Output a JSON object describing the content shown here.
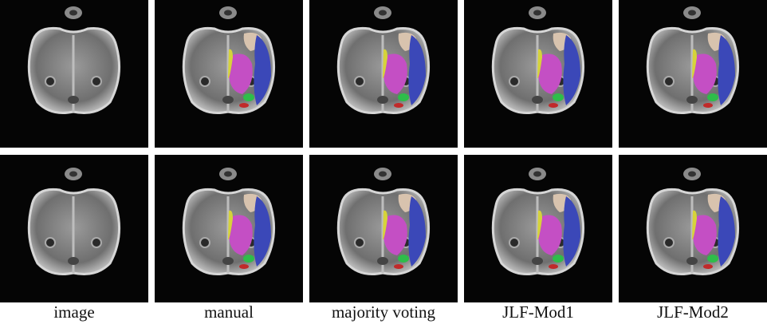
{
  "captions": [
    "image",
    "manual",
    "majority voting",
    "JLF-Mod1",
    "JLF-Mod2"
  ]
}
